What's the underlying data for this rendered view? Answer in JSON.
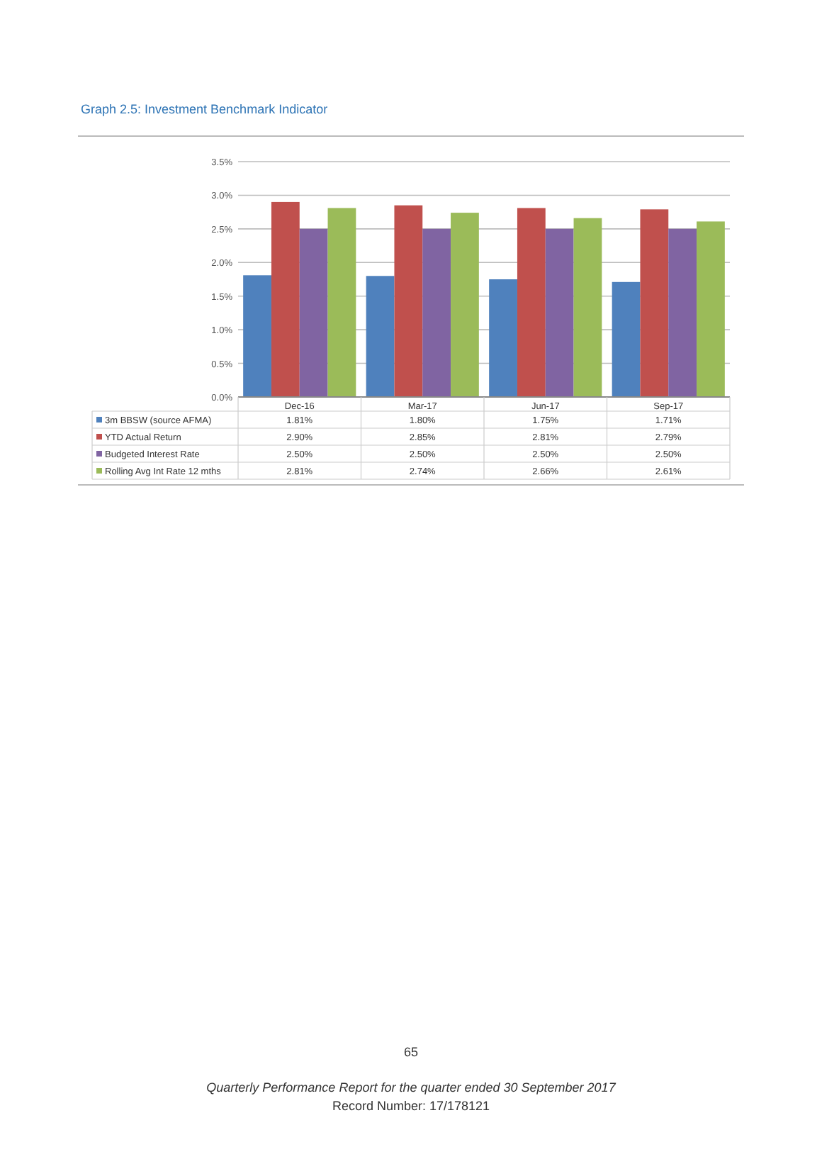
{
  "chart_data": {
    "type": "bar",
    "title": "Graph 2.5: Investment Benchmark Indicator",
    "categories": [
      "Dec-16",
      "Mar-17",
      "Jun-17",
      "Sep-17"
    ],
    "series": [
      {
        "name": "3m BBSW (source AFMA)",
        "color": "#4f81bd",
        "values": [
          1.81,
          1.8,
          1.75,
          1.71
        ],
        "value_labels": [
          "1.81%",
          "1.80%",
          "1.75%",
          "1.71%"
        ]
      },
      {
        "name": "YTD Actual Return",
        "color": "#c0504d",
        "values": [
          2.9,
          2.85,
          2.81,
          2.79
        ],
        "value_labels": [
          "2.90%",
          "2.85%",
          "2.81%",
          "2.79%"
        ]
      },
      {
        "name": "Budgeted Interest Rate",
        "color": "#8064a2",
        "values": [
          2.5,
          2.5,
          2.5,
          2.5
        ],
        "value_labels": [
          "2.50%",
          "2.50%",
          "2.50%",
          "2.50%"
        ]
      },
      {
        "name": "Rolling Avg Int Rate 12 mths",
        "color": "#9bbb59",
        "values": [
          2.81,
          2.74,
          2.66,
          2.61
        ],
        "value_labels": [
          "2.81%",
          "2.74%",
          "2.66%",
          "2.61%"
        ]
      }
    ],
    "ylim": [
      0,
      3.5
    ],
    "yticks": [
      {
        "value": 0,
        "label": "0.0%"
      },
      {
        "value": 0.5,
        "label": "0.5%"
      },
      {
        "value": 1,
        "label": "1.0%"
      },
      {
        "value": 1.5,
        "label": "1.5%"
      },
      {
        "value": 2,
        "label": "2.0%"
      },
      {
        "value": 2.5,
        "label": "2.5%"
      },
      {
        "value": 3,
        "label": "3.0%"
      },
      {
        "value": 3.5,
        "label": "3.5%"
      }
    ],
    "grid": "y",
    "legend": "bottom",
    "annotations": [
      "65",
      "Quarterly Performance Report for the quarter ended 30 September 2017",
      "Record Number: 17/178121"
    ]
  }
}
